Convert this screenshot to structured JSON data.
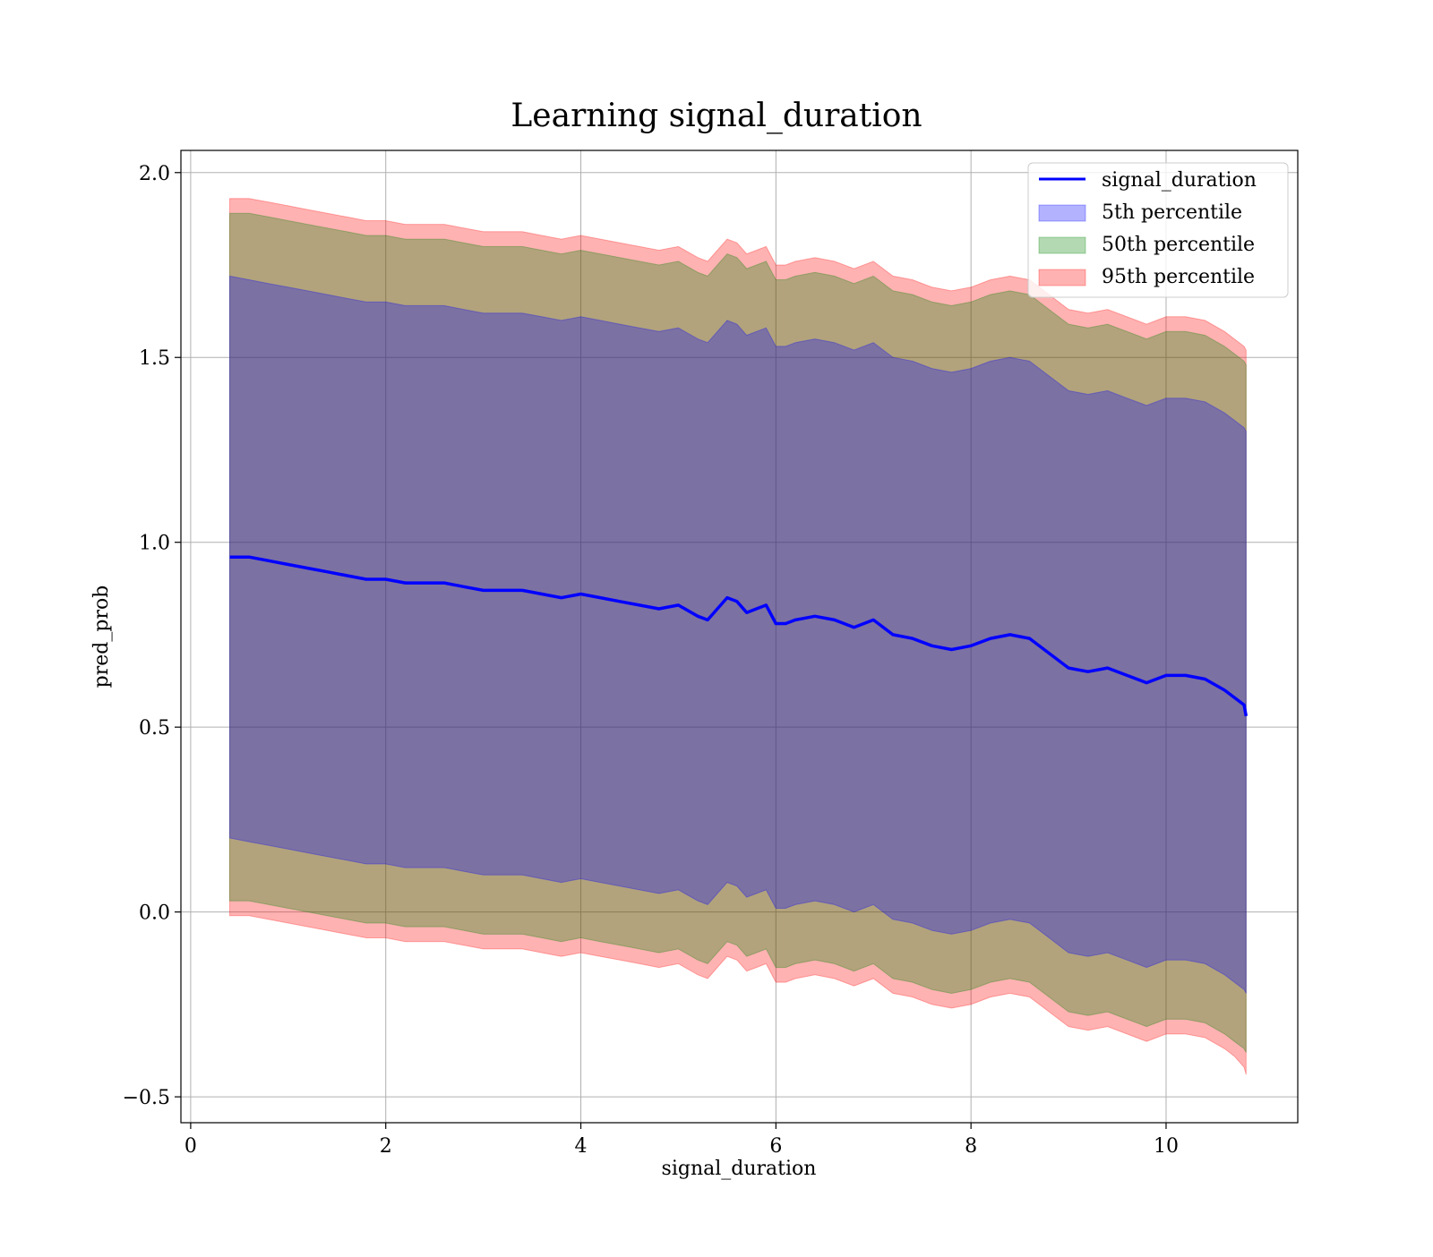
{
  "chart_data": {
    "type": "area",
    "title": "Learning signal_duration",
    "xlabel": "signal_duration",
    "ylabel": "pred_prob",
    "xlim": [
      -0.1,
      11.35
    ],
    "ylim": [
      -0.57,
      2.06
    ],
    "x_ticks": [
      0,
      2,
      4,
      6,
      8,
      10
    ],
    "x_tick_labels": [
      "0",
      "2",
      "4",
      "6",
      "8",
      "10"
    ],
    "y_ticks": [
      -0.5,
      0.0,
      0.5,
      1.0,
      1.5,
      2.0
    ],
    "y_tick_labels": [
      "−0.5",
      "0.0",
      "0.5",
      "1.0",
      "1.5",
      "2.0"
    ],
    "grid": true,
    "legend_position": "top-right",
    "colors": {
      "line": "#0000ff",
      "p5": "#0000ff",
      "p50": "#008000",
      "p95": "#ff0000",
      "grid": "#b0b0b0"
    },
    "x": [
      0.4,
      0.6,
      0.8,
      1.0,
      1.2,
      1.4,
      1.6,
      1.8,
      2.0,
      2.2,
      2.4,
      2.6,
      2.8,
      3.0,
      3.2,
      3.4,
      3.6,
      3.8,
      4.0,
      4.2,
      4.4,
      4.6,
      4.8,
      5.0,
      5.2,
      5.3,
      5.4,
      5.5,
      5.6,
      5.7,
      5.8,
      5.9,
      6.0,
      6.1,
      6.2,
      6.4,
      6.6,
      6.8,
      7.0,
      7.2,
      7.4,
      7.6,
      7.8,
      8.0,
      8.2,
      8.4,
      8.6,
      8.8,
      9.0,
      9.2,
      9.4,
      9.6,
      9.8,
      10.0,
      10.2,
      10.4,
      10.6,
      10.7,
      10.8,
      10.82
    ],
    "series": [
      {
        "name": "signal_duration",
        "values": [
          0.96,
          0.96,
          0.95,
          0.94,
          0.93,
          0.92,
          0.91,
          0.9,
          0.9,
          0.89,
          0.89,
          0.89,
          0.88,
          0.87,
          0.87,
          0.87,
          0.86,
          0.85,
          0.86,
          0.85,
          0.84,
          0.83,
          0.82,
          0.83,
          0.8,
          0.79,
          0.82,
          0.85,
          0.84,
          0.81,
          0.82,
          0.83,
          0.78,
          0.78,
          0.79,
          0.8,
          0.79,
          0.77,
          0.79,
          0.75,
          0.74,
          0.72,
          0.71,
          0.72,
          0.74,
          0.75,
          0.74,
          0.7,
          0.66,
          0.65,
          0.66,
          0.64,
          0.62,
          0.64,
          0.64,
          0.63,
          0.6,
          0.58,
          0.56,
          0.53
        ]
      },
      {
        "name": "5th percentile",
        "lower": [
          0.2,
          0.19,
          0.18,
          0.17,
          0.16,
          0.15,
          0.14,
          0.13,
          0.13,
          0.12,
          0.12,
          0.12,
          0.11,
          0.1,
          0.1,
          0.1,
          0.09,
          0.08,
          0.09,
          0.08,
          0.07,
          0.06,
          0.05,
          0.06,
          0.03,
          0.02,
          0.05,
          0.08,
          0.07,
          0.04,
          0.05,
          0.06,
          0.01,
          0.01,
          0.02,
          0.03,
          0.02,
          0.0,
          0.02,
          -0.02,
          -0.03,
          -0.05,
          -0.06,
          -0.05,
          -0.03,
          -0.02,
          -0.03,
          -0.07,
          -0.11,
          -0.12,
          -0.11,
          -0.13,
          -0.15,
          -0.13,
          -0.13,
          -0.14,
          -0.17,
          -0.19,
          -0.21,
          -0.22
        ],
        "upper": [
          1.72,
          1.71,
          1.7,
          1.69,
          1.68,
          1.67,
          1.66,
          1.65,
          1.65,
          1.64,
          1.64,
          1.64,
          1.63,
          1.62,
          1.62,
          1.62,
          1.61,
          1.6,
          1.61,
          1.6,
          1.59,
          1.58,
          1.57,
          1.58,
          1.55,
          1.54,
          1.57,
          1.6,
          1.59,
          1.56,
          1.57,
          1.58,
          1.53,
          1.53,
          1.54,
          1.55,
          1.54,
          1.52,
          1.54,
          1.5,
          1.49,
          1.47,
          1.46,
          1.47,
          1.49,
          1.5,
          1.49,
          1.45,
          1.41,
          1.4,
          1.41,
          1.39,
          1.37,
          1.39,
          1.39,
          1.38,
          1.35,
          1.33,
          1.31,
          1.3
        ]
      },
      {
        "name": "50th percentile",
        "lower": [
          0.03,
          0.03,
          0.02,
          0.01,
          0.0,
          -0.01,
          -0.02,
          -0.03,
          -0.03,
          -0.04,
          -0.04,
          -0.04,
          -0.05,
          -0.06,
          -0.06,
          -0.06,
          -0.07,
          -0.08,
          -0.07,
          -0.08,
          -0.09,
          -0.1,
          -0.11,
          -0.1,
          -0.13,
          -0.14,
          -0.11,
          -0.08,
          -0.09,
          -0.12,
          -0.11,
          -0.1,
          -0.15,
          -0.15,
          -0.14,
          -0.13,
          -0.14,
          -0.16,
          -0.14,
          -0.18,
          -0.19,
          -0.21,
          -0.22,
          -0.21,
          -0.19,
          -0.18,
          -0.19,
          -0.23,
          -0.27,
          -0.28,
          -0.27,
          -0.29,
          -0.31,
          -0.29,
          -0.29,
          -0.3,
          -0.33,
          -0.35,
          -0.37,
          -0.38
        ],
        "upper": [
          1.89,
          1.89,
          1.88,
          1.87,
          1.86,
          1.85,
          1.84,
          1.83,
          1.83,
          1.82,
          1.82,
          1.82,
          1.81,
          1.8,
          1.8,
          1.8,
          1.79,
          1.78,
          1.79,
          1.78,
          1.77,
          1.76,
          1.75,
          1.76,
          1.73,
          1.72,
          1.75,
          1.78,
          1.77,
          1.74,
          1.75,
          1.76,
          1.71,
          1.71,
          1.72,
          1.73,
          1.72,
          1.7,
          1.72,
          1.68,
          1.67,
          1.65,
          1.64,
          1.65,
          1.67,
          1.68,
          1.67,
          1.63,
          1.59,
          1.58,
          1.59,
          1.57,
          1.55,
          1.57,
          1.57,
          1.56,
          1.53,
          1.51,
          1.49,
          1.48
        ]
      },
      {
        "name": "95th percentile",
        "lower": [
          -0.01,
          -0.01,
          -0.02,
          -0.03,
          -0.04,
          -0.05,
          -0.06,
          -0.07,
          -0.07,
          -0.08,
          -0.08,
          -0.08,
          -0.09,
          -0.1,
          -0.1,
          -0.1,
          -0.11,
          -0.12,
          -0.11,
          -0.12,
          -0.13,
          -0.14,
          -0.15,
          -0.14,
          -0.17,
          -0.18,
          -0.15,
          -0.12,
          -0.13,
          -0.16,
          -0.15,
          -0.14,
          -0.19,
          -0.19,
          -0.18,
          -0.17,
          -0.18,
          -0.2,
          -0.18,
          -0.22,
          -0.23,
          -0.25,
          -0.26,
          -0.25,
          -0.23,
          -0.22,
          -0.23,
          -0.27,
          -0.31,
          -0.32,
          -0.31,
          -0.33,
          -0.35,
          -0.33,
          -0.33,
          -0.34,
          -0.37,
          -0.39,
          -0.42,
          -0.44
        ],
        "upper": [
          1.93,
          1.93,
          1.92,
          1.91,
          1.9,
          1.89,
          1.88,
          1.87,
          1.87,
          1.86,
          1.86,
          1.86,
          1.85,
          1.84,
          1.84,
          1.84,
          1.83,
          1.82,
          1.83,
          1.82,
          1.81,
          1.8,
          1.79,
          1.8,
          1.77,
          1.76,
          1.79,
          1.82,
          1.81,
          1.78,
          1.79,
          1.8,
          1.75,
          1.75,
          1.76,
          1.77,
          1.76,
          1.74,
          1.76,
          1.72,
          1.71,
          1.69,
          1.68,
          1.69,
          1.71,
          1.72,
          1.71,
          1.67,
          1.63,
          1.62,
          1.63,
          1.61,
          1.59,
          1.61,
          1.61,
          1.6,
          1.57,
          1.55,
          1.53,
          1.52
        ]
      }
    ]
  }
}
